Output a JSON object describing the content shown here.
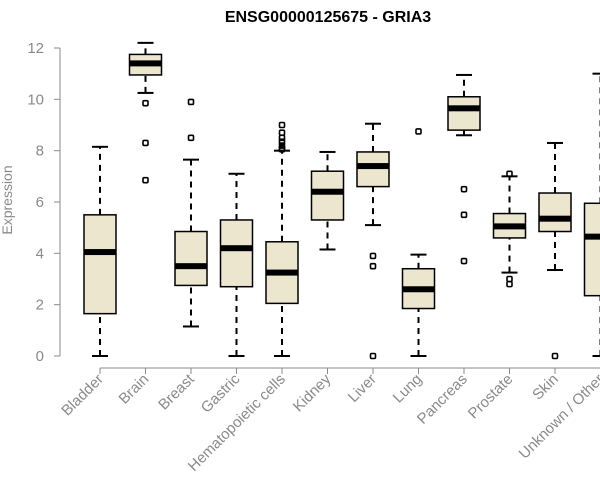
{
  "chart_data": {
    "type": "boxplot",
    "title": "ENSG00000125675 - GRIA3",
    "xlabel": "",
    "ylabel": "Expression",
    "ylim": [
      0,
      12
    ],
    "yticks": [
      0,
      2,
      4,
      6,
      8,
      10,
      12
    ],
    "colors": {
      "box_fill": "#ede6cf",
      "stroke": "#000000",
      "axis": "#8a8a8a",
      "text": "#8a8a8a"
    },
    "categories": [
      "Bladder",
      "Brain",
      "Breast",
      "Gastric",
      "Hematopoietic cells",
      "Kidney",
      "Liver",
      "Lung",
      "Pancreas",
      "Prostate",
      "Skin",
      "Unknown / Other"
    ],
    "boxes": [
      {
        "label": "Bladder",
        "min": 0.0,
        "q1": 1.65,
        "median": 4.05,
        "q3": 5.5,
        "max": 8.15,
        "outliers": []
      },
      {
        "label": "Brain",
        "min": 10.25,
        "q1": 10.95,
        "median": 11.4,
        "q3": 11.75,
        "max": 12.2,
        "outliers": [
          9.85,
          8.3,
          6.85
        ]
      },
      {
        "label": "Breast",
        "min": 1.15,
        "q1": 2.75,
        "median": 3.5,
        "q3": 4.85,
        "max": 7.65,
        "outliers": [
          9.9,
          8.5
        ]
      },
      {
        "label": "Gastric",
        "min": 0.0,
        "q1": 2.7,
        "median": 4.2,
        "q3": 5.3,
        "max": 7.1,
        "outliers": []
      },
      {
        "label": "Hematopoietic cells",
        "min": 0.0,
        "q1": 2.05,
        "median": 3.25,
        "q3": 4.45,
        "max": 8.0,
        "outliers": [
          9.0,
          8.7,
          8.5,
          8.35,
          8.2,
          8.1,
          8.05
        ]
      },
      {
        "label": "Kidney",
        "min": 4.15,
        "q1": 5.3,
        "median": 6.4,
        "q3": 7.2,
        "max": 7.95,
        "outliers": []
      },
      {
        "label": "Liver",
        "min": 5.1,
        "q1": 6.6,
        "median": 7.4,
        "q3": 7.95,
        "max": 9.05,
        "outliers": [
          3.9,
          3.5,
          0.0
        ]
      },
      {
        "label": "Lung",
        "min": 0.0,
        "q1": 1.85,
        "median": 2.6,
        "q3": 3.4,
        "max": 3.95,
        "outliers": [
          8.75
        ]
      },
      {
        "label": "Pancreas",
        "min": 8.6,
        "q1": 8.8,
        "median": 9.65,
        "q3": 10.1,
        "max": 10.95,
        "outliers": [
          6.5,
          5.5,
          3.7
        ]
      },
      {
        "label": "Prostate",
        "min": 3.25,
        "q1": 4.6,
        "median": 5.05,
        "q3": 5.55,
        "max": 7.0,
        "outliers": [
          7.1,
          3.0,
          2.8
        ]
      },
      {
        "label": "Skin",
        "min": 3.35,
        "q1": 4.85,
        "median": 5.35,
        "q3": 6.35,
        "max": 8.3,
        "outliers": [
          0.0
        ]
      },
      {
        "label": "Unknown / Other",
        "min": 0.0,
        "q1": 2.35,
        "median": 4.65,
        "q3": 5.95,
        "max": 11.0,
        "outliers": []
      }
    ]
  }
}
